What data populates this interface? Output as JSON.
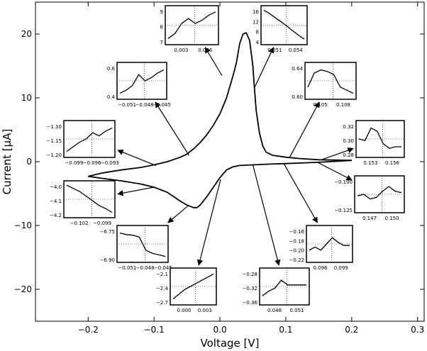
{
  "chart_data": {
    "type": "line",
    "title": "",
    "xlabel": "Voltage [V]",
    "ylabel": "Current [μA]",
    "xlim": [
      -0.28,
      0.31
    ],
    "ylim": [
      -25,
      25
    ],
    "xticks": [
      -0.2,
      -0.1,
      0.0,
      0.1,
      0.2,
      0.3
    ],
    "xtick_labels": [
      "−0.2",
      "−0.1",
      "0.0",
      "0.1",
      "0.2",
      "0.3"
    ],
    "yticks": [
      -20,
      -10,
      0,
      10,
      20
    ],
    "ytick_labels": [
      "−20",
      "−10",
      "0",
      "10",
      "20"
    ],
    "grid": false,
    "series": [
      {
        "values": [
          [
            -0.2,
            -2.3
          ],
          [
            -0.18,
            -1.8
          ],
          [
            -0.15,
            -1.3
          ],
          [
            -0.12,
            -0.9
          ],
          [
            -0.1,
            -0.5
          ],
          [
            -0.08,
            0.0
          ],
          [
            -0.06,
            0.7
          ],
          [
            -0.05,
            1.2
          ],
          [
            -0.04,
            2.0
          ],
          [
            -0.03,
            3.0
          ],
          [
            -0.02,
            4.2
          ],
          [
            -0.01,
            5.7
          ],
          [
            0.0,
            7.5
          ],
          [
            0.01,
            10.0
          ],
          [
            0.02,
            13.5
          ],
          [
            0.025,
            15.5
          ],
          [
            0.03,
            18.5
          ],
          [
            0.035,
            20.0
          ],
          [
            0.04,
            20.2
          ],
          [
            0.045,
            19.0
          ],
          [
            0.05,
            15.0
          ],
          [
            0.052,
            12.0
          ],
          [
            0.055,
            8.0
          ],
          [
            0.06,
            4.5
          ],
          [
            0.065,
            2.5
          ],
          [
            0.07,
            1.5
          ],
          [
            0.08,
            1.0
          ],
          [
            0.1,
            0.7
          ],
          [
            0.12,
            0.5
          ],
          [
            0.15,
            0.3
          ],
          [
            0.2,
            0.2
          ]
        ]
      },
      {
        "values": [
          [
            0.2,
            0.2
          ],
          [
            0.15,
            -0.1
          ],
          [
            0.1,
            -0.3
          ],
          [
            0.07,
            -0.4
          ],
          [
            0.05,
            -0.5
          ],
          [
            0.03,
            -0.6
          ],
          [
            0.02,
            -0.8
          ],
          [
            0.01,
            -1.3
          ],
          [
            0.0,
            -2.5
          ],
          [
            -0.01,
            -4.0
          ],
          [
            -0.02,
            -5.5
          ],
          [
            -0.03,
            -6.8
          ],
          [
            -0.035,
            -7.2
          ],
          [
            -0.04,
            -7.2
          ],
          [
            -0.05,
            -6.8
          ],
          [
            -0.06,
            -6.2
          ],
          [
            -0.07,
            -5.5
          ],
          [
            -0.08,
            -4.8
          ],
          [
            -0.1,
            -4.0
          ],
          [
            -0.12,
            -3.5
          ],
          [
            -0.15,
            -3.0
          ],
          [
            -0.18,
            -2.6
          ],
          [
            -0.2,
            -2.3
          ]
        ]
      }
    ],
    "insets": [
      {
        "xticks": [
          "0.003",
          "0.006"
        ],
        "yticks": [
          "9",
          "8",
          "7"
        ],
        "trend": [
          0.1,
          0.25,
          0.55,
          0.7,
          0.55,
          0.65,
          0.8,
          0.9
        ],
        "target": [
          0.003,
          13.5
        ]
      },
      {
        "xticks": [
          "0.051",
          "0.054"
        ],
        "yticks": [
          "16",
          "12",
          "8",
          "4"
        ],
        "trend": [
          0.95,
          0.85,
          0.72,
          0.6,
          0.47,
          0.33,
          0.2,
          0.08
        ],
        "target": [
          0.052,
          11.5
        ]
      },
      {
        "xticks": [
          "−0.051",
          "−0.048",
          "−0.045"
        ],
        "yticks": [
          "0.6",
          "0.4"
        ],
        "trend": [
          0.1,
          0.2,
          0.35,
          0.7,
          0.5,
          0.6,
          0.75,
          0.85
        ],
        "target": [
          -0.047,
          1.0
        ]
      },
      {
        "xticks": [
          "0.105",
          "0.108"
        ],
        "yticks": [
          "0.64",
          "0.60"
        ],
        "trend": [
          0.3,
          0.75,
          0.85,
          0.8,
          0.7,
          0.3,
          0.2,
          0.1
        ],
        "target": [
          0.106,
          0.7
        ]
      },
      {
        "xticks": [
          "−0.099",
          "−0.096",
          "−0.093"
        ],
        "yticks": [
          "−1.10",
          "−1.15",
          "−1.20"
        ],
        "trend": [
          0.1,
          0.25,
          0.4,
          0.5,
          0.7,
          0.6,
          0.75,
          0.85
        ],
        "target": [
          -0.097,
          -0.6
        ]
      },
      {
        "xticks": [
          "0.153",
          "0.156"
        ],
        "yticks": [
          "0.32",
          "0.30",
          "0.28"
        ],
        "trend": [
          0.5,
          0.45,
          0.85,
          0.75,
          0.35,
          0.2,
          0.25,
          0.25
        ],
        "target": [
          0.154,
          0.3
        ]
      },
      {
        "xticks": [
          "−0.102",
          "−0.099"
        ],
        "yticks": [
          "−4.0",
          "−4.1",
          "−4.2"
        ],
        "trend": [
          0.95,
          0.85,
          0.75,
          0.6,
          0.45,
          0.3,
          0.2,
          0.08
        ],
        "target": [
          -0.1,
          -4.0
        ]
      },
      {
        "xticks": [
          "0.147",
          "0.150"
        ],
        "yticks": [
          "−0.100",
          "−0.125"
        ],
        "trend": [
          0.45,
          0.5,
          0.35,
          0.4,
          0.6,
          0.75,
          0.6,
          0.55
        ],
        "target": [
          0.148,
          -0.1
        ]
      },
      {
        "xticks": [
          "−0.051",
          "−0.048",
          "−0.045"
        ],
        "yticks": [
          "−6.75",
          "−6.90"
        ],
        "trend": [
          0.85,
          0.8,
          0.78,
          0.72,
          0.3,
          0.2,
          0.15,
          0.1
        ],
        "target": [
          -0.047,
          -6.8
        ]
      },
      {
        "xticks": [
          "0.096",
          "0.099"
        ],
        "yticks": [
          "−0.16",
          "−0.18",
          "−0.20",
          "−0.22"
        ],
        "trend": [
          0.3,
          0.4,
          0.3,
          0.5,
          0.7,
          0.55,
          0.45,
          0.45
        ],
        "target": [
          0.097,
          -0.3
        ]
      },
      {
        "xticks": [
          "0.000",
          "0.003"
        ],
        "yticks": [
          "−2.1",
          "−2.4",
          "−2.7"
        ],
        "trend": [
          0.1,
          0.25,
          0.4,
          0.5,
          0.6,
          0.7,
          0.8,
          0.9
        ],
        "target": [
          0.001,
          -2.8
        ]
      },
      {
        "xticks": [
          "0.048",
          "0.051"
        ],
        "yticks": [
          "−0.28",
          "−0.32",
          "−0.36"
        ],
        "trend": [
          0.2,
          0.35,
          0.45,
          0.7,
          0.55,
          0.55,
          0.55,
          0.55
        ],
        "target": [
          0.05,
          -0.5
        ]
      }
    ]
  }
}
